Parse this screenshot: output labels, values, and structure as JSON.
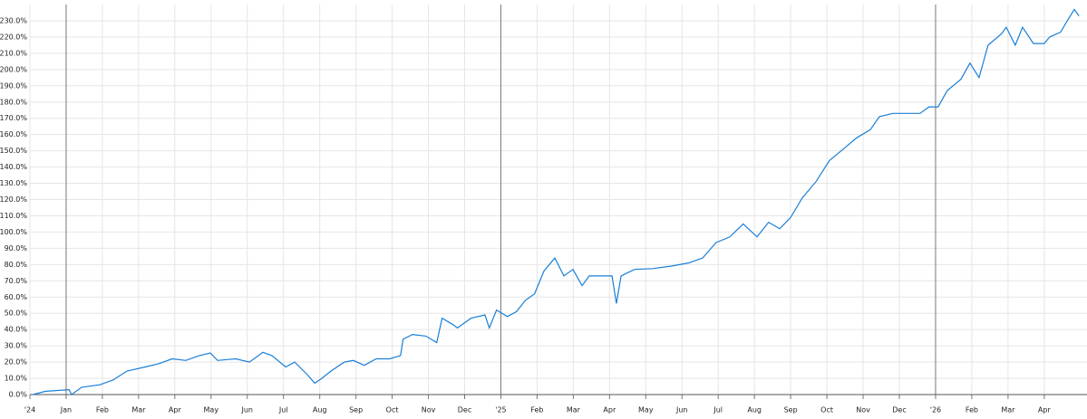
{
  "chart_data": {
    "type": "line",
    "color": "#1a7fd6",
    "grid": true,
    "xlim": [
      0,
      29.18
    ],
    "ylim": [
      0,
      240
    ],
    "xticks": [
      {
        "value": 0,
        "label": "'24"
      },
      {
        "value": 1,
        "label": "Jan"
      },
      {
        "value": 2,
        "label": "Feb"
      },
      {
        "value": 3,
        "label": "Mar"
      },
      {
        "value": 4,
        "label": "Apr"
      },
      {
        "value": 5,
        "label": "May"
      },
      {
        "value": 6,
        "label": "Jun"
      },
      {
        "value": 7,
        "label": "Jul"
      },
      {
        "value": 8,
        "label": "Aug"
      },
      {
        "value": 9,
        "label": "Sep"
      },
      {
        "value": 10,
        "label": "Oct"
      },
      {
        "value": 11,
        "label": "Nov"
      },
      {
        "value": 12,
        "label": "Dec"
      },
      {
        "value": 13,
        "label": "'25"
      },
      {
        "value": 14,
        "label": "Feb"
      },
      {
        "value": 15,
        "label": "Mar"
      },
      {
        "value": 16,
        "label": "Apr"
      },
      {
        "value": 17,
        "label": "May"
      },
      {
        "value": 18,
        "label": "Jun"
      },
      {
        "value": 19,
        "label": "Jul"
      },
      {
        "value": 20,
        "label": "Aug"
      },
      {
        "value": 21,
        "label": "Sep"
      },
      {
        "value": 22,
        "label": "Oct"
      },
      {
        "value": 23,
        "label": "Nov"
      },
      {
        "value": 24,
        "label": "Dec"
      },
      {
        "value": 25,
        "label": "'26"
      },
      {
        "value": 26,
        "label": "Feb"
      },
      {
        "value": 27,
        "label": "Mar"
      },
      {
        "value": 28,
        "label": "Apr"
      }
    ],
    "yticks": [
      {
        "value": 0,
        "label": "0.0%"
      },
      {
        "value": 10,
        "label": "10.0%"
      },
      {
        "value": 20,
        "label": "20.0%"
      },
      {
        "value": 30,
        "label": "30.0%"
      },
      {
        "value": 40,
        "label": "40.0%"
      },
      {
        "value": 50,
        "label": "50.0%"
      },
      {
        "value": 60,
        "label": "60.0%"
      },
      {
        "value": 70,
        "label": "70.0%"
      },
      {
        "value": 80,
        "label": "80.0%"
      },
      {
        "value": 90,
        "label": "90.0%"
      },
      {
        "value": 100,
        "label": "100.0%"
      },
      {
        "value": 110,
        "label": "110.0%"
      },
      {
        "value": 120,
        "label": "120.0%"
      },
      {
        "value": 130,
        "label": "130.0%"
      },
      {
        "value": 140,
        "label": "140.0%"
      },
      {
        "value": 150,
        "label": "150.0%"
      },
      {
        "value": 160,
        "label": "160.0%"
      },
      {
        "value": 170,
        "label": "170.0%"
      },
      {
        "value": 180,
        "label": "180.0%"
      },
      {
        "value": 190,
        "label": "190.0%"
      },
      {
        "value": 200,
        "label": "200.0%"
      },
      {
        "value": 210,
        "label": "210.0%"
      },
      {
        "value": 220,
        "label": "220.0%"
      },
      {
        "value": 230,
        "label": "230.0%"
      }
    ],
    "x": [
      0.08,
      0.43,
      1.08,
      1.15,
      1.43,
      1.93,
      2.3,
      2.68,
      3.18,
      3.55,
      3.93,
      4.3,
      4.68,
      4.98,
      5.18,
      5.68,
      6.06,
      6.43,
      6.68,
      7.06,
      7.31,
      7.68,
      7.86,
      8.06,
      8.31,
      8.68,
      8.93,
      9.23,
      9.56,
      9.93,
      10.23,
      10.3,
      10.56,
      10.93,
      11.23,
      11.38,
      11.68,
      11.8,
      12.18,
      12.56,
      12.68,
      12.88,
      13.18,
      13.43,
      13.68,
      13.93,
      14.19,
      14.49,
      14.74,
      14.99,
      15.24,
      15.44,
      15.82,
      16.07,
      16.19,
      16.32,
      16.69,
      17.19,
      17.69,
      18.19,
      18.57,
      18.94,
      19.32,
      19.69,
      20.07,
      20.39,
      20.7,
      21.0,
      21.32,
      21.7,
      22.07,
      22.45,
      22.82,
      23.2,
      23.45,
      23.82,
      24.2,
      24.57,
      24.82,
      25.07,
      25.32,
      25.7,
      25.95,
      26.2,
      26.45,
      26.82,
      26.95,
      27.2,
      27.4,
      27.7,
      28.0,
      28.15,
      28.45,
      28.65,
      28.83,
      28.96
    ],
    "values": [
      0,
      2,
      3,
      0,
      4.5,
      6,
      9,
      14.5,
      17,
      19,
      22,
      21,
      24,
      25.6,
      21,
      22,
      20,
      26,
      24,
      17,
      20,
      11.7,
      7,
      10,
      14.5,
      20,
      21,
      18,
      22,
      22,
      24,
      34,
      37,
      36,
      32,
      47,
      43,
      41,
      47,
      49,
      41,
      52,
      48,
      51,
      58,
      62,
      76,
      84,
      73,
      77,
      67,
      73,
      73,
      73,
      56,
      73,
      77,
      77.5,
      79,
      81,
      84,
      93.5,
      97,
      105,
      97,
      106,
      102,
      109,
      121,
      131,
      144,
      151,
      158,
      163,
      171,
      173,
      173,
      173,
      177,
      177,
      187,
      194,
      204,
      195,
      215,
      222,
      226,
      215,
      226,
      216,
      216,
      220,
      223,
      230.5,
      237,
      233
    ]
  }
}
